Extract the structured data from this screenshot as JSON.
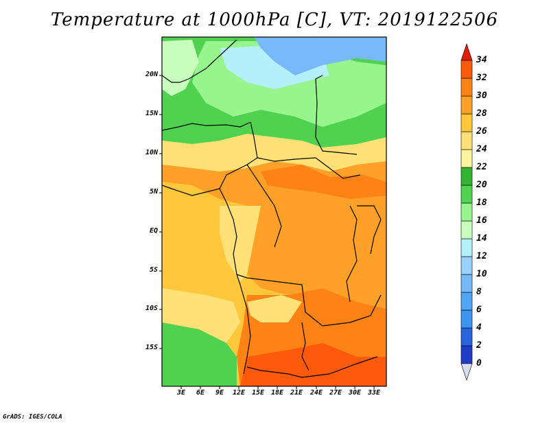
{
  "title": "Temperature at 1000hPa [C], VT: 2019122506",
  "credit": "GrADS: IGES/COLA",
  "lat_labels": [
    "20N",
    "15N",
    "10N",
    "5N",
    "EQ",
    "5S",
    "10S",
    "15S"
  ],
  "lon_labels": [
    "3E",
    "6E",
    "9E",
    "12E",
    "15E",
    "18E",
    "21E",
    "24E",
    "27E",
    "30E",
    "33E"
  ],
  "colorbar": {
    "labels": [
      "0",
      "2",
      "4",
      "6",
      "8",
      "10",
      "12",
      "14",
      "16",
      "18",
      "20",
      "22",
      "24",
      "26",
      "28",
      "30",
      "32",
      "34"
    ],
    "colors": [
      "#1e1e8c",
      "#1e3cc8",
      "#2864dc",
      "#3c96f0",
      "#50a5f5",
      "#78b9fa",
      "#96d2fa",
      "#b4f0fa",
      "#c8ffbe",
      "#96f58c",
      "#50d250",
      "#32b432",
      "#fff5a0",
      "#ffe178",
      "#ffc83c",
      "#ffa028",
      "#ff8214",
      "#ff5a0a",
      "#e11e0a"
    ]
  },
  "map_colors": {
    "ocean_warm": "#ffc83c",
    "land_warm": "#ffa028",
    "hot": "#ff8214",
    "very_hot": "#ff5a0a",
    "mild": "#ffe178",
    "cool_green": "#50d250",
    "green": "#96f58c",
    "pale": "#c8ffbe",
    "light_blue": "#b4f0fa",
    "blue": "#78b9fa"
  }
}
